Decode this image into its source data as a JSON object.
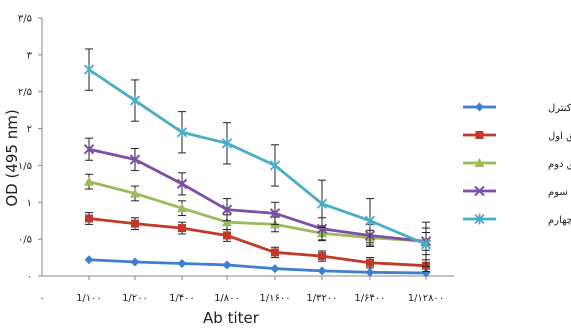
{
  "chart_data": {
    "type": "line",
    "xlabel": "Ab titer",
    "ylabel": "OD (495 nm)",
    "categories": [
      "1/۱۰۰",
      "1/۲۰۰",
      "1/۴۰۰",
      "1/۸۰۰",
      "1/۱۶۰۰",
      "1/۳۲۰۰",
      "1/۶۴۰۰",
      "1/۱۲۸۰۰"
    ],
    "origin_label": "۰",
    "y_ticks": [
      {
        "value": 0,
        "label": "۰"
      },
      {
        "value": 0.5,
        "label": "۰/۵"
      },
      {
        "value": 1,
        "label": "۱"
      },
      {
        "value": 1.5,
        "label": "۱/۵"
      },
      {
        "value": 2,
        "label": "۲"
      },
      {
        "value": 2.5,
        "label": "۲/۵"
      },
      {
        "value": 3,
        "label": "۳"
      },
      {
        "value": 3.5,
        "label": "۳/۵"
      }
    ],
    "ylim": [
      0,
      3.5
    ],
    "grid": false,
    "legend_position": "right",
    "series": [
      {
        "name": "کنترل",
        "color": "#3F7FD0",
        "marker": "diamond",
        "values": [
          0.22,
          0.19,
          0.17,
          0.15,
          0.1,
          0.07,
          0.05,
          0.04
        ],
        "errors": null
      },
      {
        "name": "تزریق اول",
        "color": "#C0392B",
        "marker": "square",
        "values": [
          0.78,
          0.71,
          0.65,
          0.55,
          0.32,
          0.27,
          0.18,
          0.14
        ],
        "errors": [
          0.08,
          0.08,
          0.08,
          0.08,
          0.07,
          0.07,
          0.07,
          0.08
        ]
      },
      {
        "name": "تزریق دوم",
        "color": "#9BBB59",
        "marker": "triangle",
        "values": [
          1.28,
          1.12,
          0.92,
          0.73,
          0.7,
          0.58,
          0.52,
          0.47
        ],
        "errors": [
          0.1,
          0.1,
          0.1,
          0.1,
          0.1,
          0.1,
          0.1,
          0.12
        ]
      },
      {
        "name": "تزریق سوم",
        "color": "#7E4FA6",
        "marker": "x",
        "values": [
          1.72,
          1.58,
          1.25,
          0.9,
          0.85,
          0.64,
          0.55,
          0.47
        ],
        "errors": [
          0.15,
          0.15,
          0.15,
          0.15,
          0.15,
          0.15,
          0.15,
          0.18
        ]
      },
      {
        "name": "تزریق چهارم",
        "color": "#4BACC6",
        "marker": "star",
        "values": [
          2.8,
          2.38,
          1.95,
          1.8,
          1.5,
          0.98,
          0.75,
          0.43
        ],
        "errors": [
          0.28,
          0.28,
          0.28,
          0.28,
          0.28,
          0.32,
          0.3,
          0.3
        ]
      }
    ]
  }
}
